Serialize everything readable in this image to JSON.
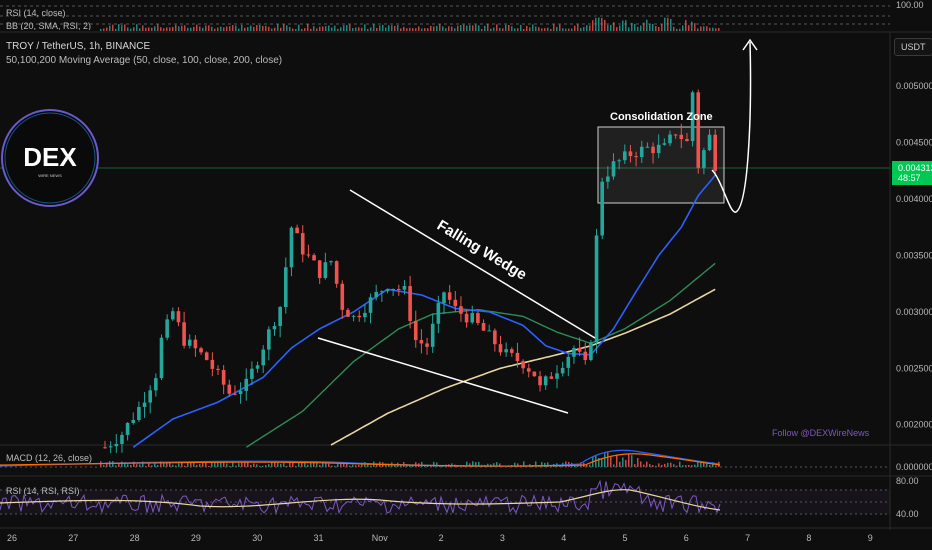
{
  "header": {
    "pair_title": "TROY / TetherUS, 1h, BINANCE",
    "ma_legend": "50,100,200 Moving Average (50, close, 100, close, 200, close)",
    "top_rsi_label": "RSI (14, close)",
    "top_bb_label": "BB (20, SMA, RSI, 2)",
    "top_rsi_value": "100.00"
  },
  "currency_button": "USDT",
  "logo": {
    "text": "DEX",
    "subtext": "WIRE NEWS"
  },
  "annotations": {
    "consolidation": "Consolidation Zone",
    "wedge": "Falling Wedge",
    "follow": "Follow @DEXWireNews"
  },
  "price_badge": {
    "price": "0.004313",
    "countdown": "48:57",
    "color": "#22c55e"
  },
  "macd": {
    "label": "MACD (12, 26, close)",
    "tick": "0.000000"
  },
  "rsi": {
    "label": "RSI (14, RSI, RSI)",
    "ticks": [
      "80.00",
      "40.00"
    ]
  },
  "colors": {
    "background": "#0e0e0e",
    "up_candle": "#26a69a",
    "down_candle": "#ef5350",
    "ma50": "#2962ff",
    "ma100": "#2e8b57",
    "ma200": "#e8d5a0",
    "rsi_line": "#7e57c2",
    "rsi_ma": "#e8d5a0",
    "macd_line": "#2962ff",
    "signal_line": "#ff6d00",
    "follow_text": "#7e57c2"
  },
  "chart_data": {
    "type": "candlestick",
    "x_tick_labels": [
      "26",
      "27",
      "28",
      "29",
      "30",
      "31",
      "Nov",
      "2",
      "3",
      "4",
      "5",
      "6",
      "7",
      "8",
      "9"
    ],
    "y_tick_labels": [
      "0.005000",
      "0.004500",
      "0.004000",
      "0.003500",
      "0.003000",
      "0.002500",
      "0.002000"
    ],
    "ylim": [
      0.00182,
      0.00548
    ],
    "series": [
      {
        "name": "close",
        "anchors": [
          [
            0,
            0.0018
          ],
          [
            3,
            0.00192
          ],
          [
            6,
            0.00215
          ],
          [
            9,
            0.00245
          ],
          [
            10,
            0.00275
          ],
          [
            12,
            0.003
          ],
          [
            14,
            0.00275
          ],
          [
            18,
            0.00258
          ],
          [
            22,
            0.00228
          ],
          [
            25,
            0.00235
          ],
          [
            28,
            0.0027
          ],
          [
            31,
            0.00305
          ],
          [
            33,
            0.00375
          ],
          [
            35,
            0.00355
          ],
          [
            38,
            0.00335
          ],
          [
            40,
            0.00345
          ],
          [
            42,
            0.00305
          ],
          [
            44,
            0.00295
          ],
          [
            46,
            0.00305
          ],
          [
            50,
            0.00325
          ],
          [
            53,
            0.00318
          ],
          [
            55,
            0.00275
          ],
          [
            57,
            0.0027
          ],
          [
            60,
            0.00318
          ],
          [
            62,
            0.00302
          ],
          [
            65,
            0.00293
          ],
          [
            68,
            0.00278
          ],
          [
            71,
            0.00262
          ],
          [
            74,
            0.00255
          ],
          [
            76,
            0.00245
          ],
          [
            77,
            0.00232
          ],
          [
            80,
            0.0025
          ],
          [
            83,
            0.00268
          ],
          [
            85,
            0.00252
          ],
          [
            86,
            0.00278
          ],
          [
            87,
            0.00365
          ],
          [
            88,
            0.00418
          ],
          [
            90,
            0.0043
          ],
          [
            93,
            0.0044
          ],
          [
            96,
            0.00445
          ],
          [
            99,
            0.00445
          ],
          [
            101,
            0.0046
          ],
          [
            103,
            0.0045
          ],
          [
            104,
            0.00495
          ],
          [
            105,
            0.0043
          ],
          [
            107,
            0.00455
          ],
          [
            108,
            0.00431
          ]
        ]
      },
      {
        "name": "MA 50",
        "anchors": [
          [
            5,
            0.0018
          ],
          [
            12,
            0.00205
          ],
          [
            20,
            0.0022
          ],
          [
            28,
            0.00242
          ],
          [
            33,
            0.00268
          ],
          [
            38,
            0.00285
          ],
          [
            44,
            0.003
          ],
          [
            50,
            0.0032
          ],
          [
            56,
            0.00315
          ],
          [
            62,
            0.00303
          ],
          [
            68,
            0.003
          ],
          [
            74,
            0.00288
          ],
          [
            78,
            0.0027
          ],
          [
            82,
            0.00263
          ],
          [
            86,
            0.00262
          ],
          [
            90,
            0.00285
          ],
          [
            94,
            0.00318
          ],
          [
            98,
            0.0035
          ],
          [
            102,
            0.00375
          ],
          [
            105,
            0.00403
          ],
          [
            108,
            0.00421
          ]
        ]
      },
      {
        "name": "MA 100",
        "anchors": [
          [
            25,
            0.0018
          ],
          [
            35,
            0.00212
          ],
          [
            44,
            0.00256
          ],
          [
            52,
            0.00285
          ],
          [
            58,
            0.00298
          ],
          [
            66,
            0.00302
          ],
          [
            74,
            0.00296
          ],
          [
            80,
            0.00282
          ],
          [
            86,
            0.00272
          ],
          [
            92,
            0.00285
          ],
          [
            100,
            0.0031
          ],
          [
            108,
            0.00343
          ]
        ]
      },
      {
        "name": "MA 200",
        "anchors": [
          [
            40,
            0.00182
          ],
          [
            50,
            0.0021
          ],
          [
            60,
            0.00232
          ],
          [
            70,
            0.0025
          ],
          [
            80,
            0.00262
          ],
          [
            86,
            0.0027
          ],
          [
            92,
            0.00281
          ],
          [
            100,
            0.00298
          ],
          [
            108,
            0.0032
          ]
        ]
      }
    ]
  }
}
